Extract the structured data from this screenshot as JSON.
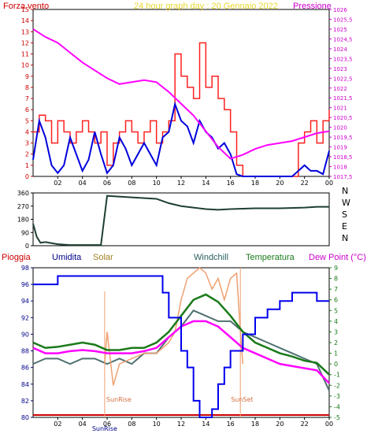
{
  "top_panel": {
    "left_title": "Forza vento",
    "center_title": "24 hour graph day : 20 Gennaio 2022",
    "right_title": "Pressione",
    "left_ticks": [
      "0",
      "1",
      "2",
      "3",
      "4",
      "5",
      "6",
      "7",
      "8",
      "9",
      "10",
      "11",
      "12",
      "13",
      "14",
      "15"
    ],
    "right_ticks": [
      "1017,5",
      "1018",
      "1018,5",
      "1019",
      "1019,5",
      "1020",
      "1020,5",
      "1021",
      "1021,5",
      "1022",
      "1022,5",
      "1023",
      "1023,5",
      "1024",
      "1024,5",
      "1025",
      "1025,5",
      "1026"
    ],
    "x_ticks": [
      "02",
      "04",
      "06",
      "08",
      "10",
      "12",
      "14",
      "16",
      "18",
      "20",
      "22",
      "00"
    ]
  },
  "mid_panel": {
    "left_ticks": [
      "0",
      "90",
      "180",
      "270",
      "360"
    ],
    "compass": [
      "N",
      "W",
      "S",
      "E",
      "N"
    ]
  },
  "bottom_panel": {
    "legend": {
      "pioggia": "Pioggia",
      "umidita": "Umidita",
      "solar": "Solar",
      "windchill": "Windchill",
      "temperatura": "Temperatura",
      "dewpoint": "Dew Point (°C)"
    },
    "left_ticks": [
      "80",
      "82",
      "84",
      "86",
      "88",
      "90",
      "92",
      "94",
      "96",
      "98"
    ],
    "right_ticks": [
      "-5",
      "-4",
      "-3",
      "-2",
      "-1",
      "0",
      "1",
      "2",
      "3",
      "4",
      "5",
      "6",
      "7",
      "8",
      "9"
    ],
    "x_ticks": [
      "02",
      "04",
      "06",
      "08",
      "10",
      "12",
      "14",
      "16",
      "18",
      "20",
      "22",
      "00"
    ],
    "sunrise": "SunRise",
    "sunset": "SunSet"
  },
  "colors": {
    "wind_gust": "#ff2020",
    "wind_avg": "#0000dd",
    "pressure": "#ff00ff",
    "direction": "#1e4030",
    "humidity": "#0000ee",
    "solar": "#f0a070",
    "windchill": "#507070",
    "temperature": "#1a7a1a",
    "dewpoint": "#ff00ff",
    "rain": "#cc0000"
  },
  "chart_data": [
    {
      "type": "line",
      "series": [
        {
          "name": "Forza vento",
          "x": [
            0,
            0.5,
            1,
            1.5,
            2,
            2.5,
            3,
            3.5,
            4,
            4.5,
            5,
            5.5,
            6,
            6.5,
            7,
            7.5,
            8,
            8.5,
            9,
            9.5,
            10,
            10.5,
            11,
            11.5,
            12,
            12.5,
            13,
            13.5,
            14,
            14.5,
            15,
            15.5,
            16,
            16.5,
            17,
            17.5,
            18,
            18.5,
            19,
            19.5,
            20,
            20.5,
            21,
            21.5,
            22,
            22.5,
            23,
            23.5,
            24
          ],
          "values": [
            4,
            5.5,
            5,
            3,
            5,
            4,
            3,
            4,
            5,
            4,
            3,
            4,
            1,
            3,
            4,
            5,
            4,
            3,
            4,
            5,
            3,
            4,
            5,
            11,
            9,
            8,
            7,
            12,
            8,
            9,
            7,
            6,
            4,
            1,
            0,
            0,
            0,
            0,
            0,
            0,
            0,
            0,
            0,
            3,
            4,
            5,
            3,
            5,
            6
          ]
        },
        {
          "name": "Forza vento media",
          "x": [
            0,
            0.5,
            1,
            1.5,
            2,
            2.5,
            3,
            3.5,
            4,
            4.5,
            5,
            5.5,
            6,
            6.5,
            7,
            7.5,
            8,
            8.5,
            9,
            9.5,
            10,
            10.5,
            11,
            11.5,
            12,
            12.5,
            13,
            13.5,
            14,
            14.5,
            15,
            15.5,
            16,
            16.5,
            17,
            17.5,
            18,
            18.5,
            19,
            19.5,
            20,
            20.5,
            21,
            21.5,
            22,
            22.5,
            23,
            23.5,
            24
          ],
          "values": [
            1.5,
            5,
            3.5,
            1,
            0.3,
            1,
            3.5,
            2,
            0.5,
            1.5,
            4,
            2,
            0.3,
            1,
            3.5,
            2.5,
            1,
            2,
            3,
            2,
            1,
            3.5,
            4,
            6.5,
            5,
            4.5,
            3,
            5,
            4,
            3.5,
            2.5,
            3,
            2,
            0.2,
            0,
            0,
            0,
            0,
            0,
            0,
            0,
            0,
            0,
            0.5,
            1,
            0.5,
            0.5,
            0.2,
            2.3
          ]
        },
        {
          "name": "Pressione",
          "x": [
            0,
            1,
            2,
            3,
            4,
            5,
            6,
            7,
            8,
            9,
            10,
            11,
            12,
            13,
            14,
            15,
            16,
            17,
            18,
            19,
            20,
            21,
            22,
            23,
            24
          ],
          "values": [
            1025,
            1024.6,
            1024.3,
            1023.8,
            1023.3,
            1022.9,
            1022.5,
            1022.2,
            1022.3,
            1022.4,
            1022.3,
            1021.8,
            1021.2,
            1020.6,
            1019.8,
            1019.0,
            1018.4,
            1018.6,
            1018.9,
            1019.1,
            1019.2,
            1019.3,
            1019.5,
            1019.7,
            1019.8
          ]
        }
      ],
      "xlim": [
        0,
        24
      ],
      "ylim": [
        0,
        15
      ],
      "y2lim": [
        1017.5,
        1026
      ]
    },
    {
      "type": "line",
      "series": [
        {
          "name": "Direzione",
          "x": [
            0,
            0.3,
            0.6,
            1,
            2,
            3,
            4,
            5,
            5.5,
            6,
            8,
            10,
            11,
            12,
            13,
            14,
            15,
            16,
            18,
            20,
            22,
            23,
            24
          ],
          "values": [
            150,
            60,
            20,
            25,
            10,
            5,
            5,
            5,
            5,
            340,
            330,
            320,
            290,
            270,
            260,
            250,
            245,
            250,
            255,
            255,
            260,
            265,
            265
          ]
        }
      ],
      "xlim": [
        0,
        24
      ],
      "ylim": [
        0,
        360
      ]
    },
    {
      "type": "line",
      "series": [
        {
          "name": "Umidita",
          "x": [
            0,
            1,
            2,
            3,
            4,
            5,
            6,
            7,
            8,
            9,
            10,
            10.5,
            11,
            11.5,
            12,
            12.5,
            13,
            13.5,
            14,
            14.5,
            15,
            15.5,
            16,
            17,
            18,
            19,
            20,
            21,
            22,
            23,
            24
          ],
          "values": [
            96,
            96,
            97,
            97,
            97,
            97,
            97,
            97,
            97,
            97,
            97,
            95,
            92,
            92,
            88,
            86,
            82,
            80,
            80,
            81,
            84,
            86,
            88,
            90,
            92,
            93,
            94,
            95,
            95,
            94,
            94
          ]
        },
        {
          "name": "Solar",
          "x": [
            5.8,
            6,
            6.5,
            7,
            8,
            9,
            10,
            10.5,
            11,
            11.5,
            12,
            12.5,
            13,
            13.5,
            14,
            14.5,
            15,
            15.5,
            16,
            16.5,
            16.8,
            17
          ],
          "values": [
            0,
            3,
            -2,
            0,
            0.5,
            1,
            1,
            1.5,
            2,
            3,
            6,
            8,
            8.5,
            9,
            8.5,
            7,
            8,
            6,
            8,
            8.5,
            3,
            0
          ]
        },
        {
          "name": "Windchill",
          "x": [
            0,
            1,
            2,
            3,
            4,
            5,
            6,
            7,
            8,
            9,
            10,
            11,
            12,
            13,
            14,
            15,
            16,
            17,
            18,
            19,
            20,
            21,
            22,
            23,
            24
          ],
          "values": [
            0,
            0.5,
            0.5,
            0,
            0.5,
            0.5,
            0,
            0.5,
            0,
            1,
            1,
            2.5,
            3.5,
            5,
            4.5,
            4,
            4,
            3,
            2.5,
            2,
            1.5,
            1,
            0.5,
            0,
            -2.5
          ]
        },
        {
          "name": "Temperatura",
          "x": [
            0,
            1,
            2,
            3,
            4,
            5,
            6,
            7,
            8,
            9,
            10,
            11,
            12,
            13,
            14,
            15,
            16,
            17,
            18,
            19,
            20,
            21,
            22,
            23,
            24
          ],
          "values": [
            2,
            1.5,
            1.6,
            1.8,
            2,
            1.8,
            1.3,
            1.3,
            1.5,
            1.5,
            2,
            3,
            4.5,
            6,
            6.5,
            5.8,
            4.5,
            3,
            2,
            1.5,
            1,
            0.7,
            0.3,
            0.1,
            -1
          ]
        },
        {
          "name": "Dew Point",
          "x": [
            0,
            1,
            2,
            3,
            4,
            5,
            6,
            7,
            8,
            9,
            10,
            11,
            12,
            13,
            14,
            15,
            16,
            17,
            18,
            19,
            20,
            21,
            22,
            23,
            24
          ],
          "values": [
            1.5,
            1,
            1,
            1.2,
            1.3,
            1.2,
            1,
            1,
            1,
            1.2,
            1.5,
            2.5,
            3.5,
            4,
            4,
            3.5,
            2.5,
            1.5,
            1,
            0.5,
            0,
            -0.2,
            -0.4,
            -0.6,
            -1.8
          ]
        }
      ],
      "xlim": [
        0,
        24
      ],
      "ylim": [
        80,
        98
      ],
      "y2lim": [
        -5,
        9
      ]
    }
  ]
}
